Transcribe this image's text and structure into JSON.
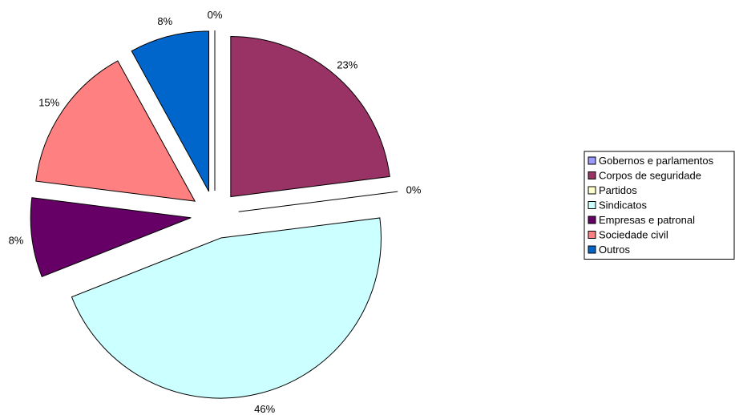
{
  "chart_data": {
    "type": "pie",
    "exploded": true,
    "categories": [
      "Gobernos e parlamentos",
      "Corpos de seguridade",
      "Partidos",
      "Sindicatos",
      "Empresas e patronal",
      "Sociedade civil",
      "Outros"
    ],
    "values": [
      0,
      23,
      0,
      46,
      8,
      15,
      8
    ],
    "data_labels": [
      "0%",
      "23%",
      "0%",
      "46%",
      "8%",
      "15%",
      "8%"
    ],
    "colors": [
      "#9999ff",
      "#993366",
      "#ffffcc",
      "#ccffff",
      "#660066",
      "#ff8080",
      "#0066cc"
    ],
    "legend_position": "right"
  }
}
